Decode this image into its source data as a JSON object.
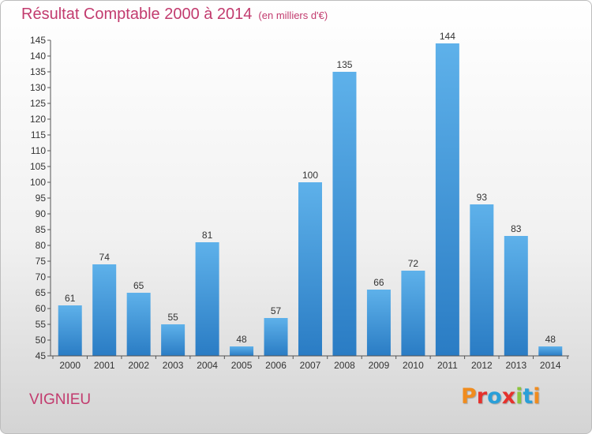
{
  "header": {
    "title": "Résultat Comptable 2000 à 2014",
    "unit_note": "(en milliers d'€)"
  },
  "footer": {
    "commune": "VIGNIEU",
    "logo_text": "Proxiti",
    "logo_colors": [
      "#f08c1e",
      "#e5322d",
      "#2a9fd8",
      "#e5322d",
      "#8cc43c",
      "#2a9fd8",
      "#f08c1e"
    ]
  },
  "colors": {
    "bar_top": "#5eb1ea",
    "bar_bottom": "#2a7cc4",
    "accent": "#c23b6e"
  },
  "chart_data": {
    "type": "bar",
    "categories": [
      "2000",
      "2001",
      "2002",
      "2003",
      "2004",
      "2005",
      "2006",
      "2007",
      "2008",
      "2009",
      "2010",
      "2011",
      "2012",
      "2013",
      "2014"
    ],
    "values": [
      61,
      74,
      65,
      55,
      81,
      48,
      57,
      100,
      135,
      66,
      72,
      144,
      93,
      83,
      48
    ],
    "title": "Résultat Comptable 2000 à 2014",
    "xlabel": "",
    "ylabel": "",
    "ylim": [
      45,
      145
    ],
    "ytick_step": 5,
    "grid": false,
    "data_labels": true
  }
}
